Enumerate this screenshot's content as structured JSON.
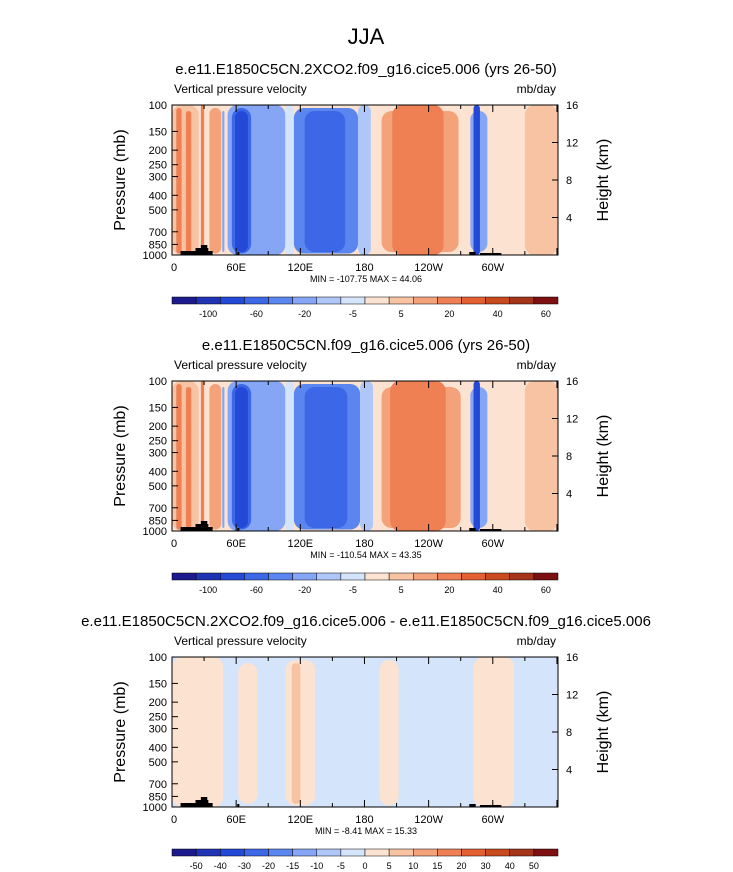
{
  "figure_title": "JJA",
  "chart_data": [
    {
      "type": "heatmap",
      "title": "e.e11.E1850C5CN.2XCO2.f09_g16.cice5.006 (yrs 26-50)",
      "variable": "Vertical pressure velocity",
      "units": "mb/day",
      "ylabel": "Pressure (mb)",
      "ylabel_right": "Height (km)",
      "xticks": [
        "0",
        "60E",
        "120E",
        "180",
        "120W",
        "60W"
      ],
      "yticks": [
        "100",
        "150",
        "200",
        "250",
        "300",
        "400",
        "500",
        "700",
        "850",
        "1000"
      ],
      "yticks_right": [
        "16",
        "12",
        "8",
        "4"
      ],
      "stats": "MIN = -107.75   MAX =  44.06",
      "colorbar_labels": [
        "-100",
        "-60",
        "-20",
        "-5",
        "5",
        "20",
        "40",
        "60"
      ],
      "colorbar_colors": [
        "#1c1b8e",
        "#1f33b4",
        "#2349d6",
        "#3c68e8",
        "#5c86ef",
        "#84a6f4",
        "#aec6f8",
        "#d4e4fb",
        "#fce2d0",
        "#f8c3a3",
        "#f4a27a",
        "#ee8054",
        "#e46032",
        "#c94a1e",
        "#a4341a",
        "#7c1010"
      ],
      "regions": [
        {
          "x": 0,
          "w": 25,
          "fill": "#f8c3a3"
        },
        {
          "x": 4,
          "w": 5,
          "fill": "#ee8054"
        },
        {
          "x": 13,
          "w": 5,
          "fill": "#ee8054"
        },
        {
          "x": 27,
          "w": 3,
          "fill": "#ee8054"
        },
        {
          "x": 35,
          "w": 11,
          "fill": "#f4a27a"
        },
        {
          "x": 47,
          "w": 2,
          "fill": "#84a6f4"
        },
        {
          "x": 52,
          "w": 54,
          "fill": "#84a6f4"
        },
        {
          "x": 56,
          "w": 18,
          "fill": "#3c68e8"
        },
        {
          "x": 59,
          "w": 12,
          "fill": "#2349d6"
        },
        {
          "x": 106,
          "w": 8,
          "fill": "#d4e4fb"
        },
        {
          "x": 114,
          "w": 60,
          "fill": "#5c86ef"
        },
        {
          "x": 124,
          "w": 38,
          "fill": "#3c68e8"
        },
        {
          "x": 174,
          "w": 12,
          "fill": "#aec6f8"
        },
        {
          "x": 186,
          "w": 88,
          "fill": "#fce2d0"
        },
        {
          "x": 196,
          "w": 72,
          "fill": "#f4a27a"
        },
        {
          "x": 206,
          "w": 48,
          "fill": "#ee8054"
        },
        {
          "x": 274,
          "w": 5,
          "fill": "#fce2d0"
        },
        {
          "x": 279,
          "w": 16,
          "fill": "#84a6f4"
        },
        {
          "x": 282,
          "w": 6,
          "fill": "#2349d6"
        },
        {
          "x": 295,
          "w": 22,
          "fill": "#fce2d0"
        },
        {
          "x": 317,
          "w": 44,
          "fill": "#fce2d0"
        },
        {
          "x": 330,
          "w": 31,
          "fill": "#f8c3a3"
        }
      ]
    },
    {
      "type": "heatmap",
      "title": "e.e11.E1850C5CN.f09_g16.cice5.006 (yrs 26-50)",
      "variable": "Vertical pressure velocity",
      "units": "mb/day",
      "ylabel": "Pressure (mb)",
      "ylabel_right": "Height (km)",
      "xticks": [
        "0",
        "60E",
        "120E",
        "180",
        "120W",
        "60W"
      ],
      "yticks": [
        "100",
        "150",
        "200",
        "250",
        "300",
        "400",
        "500",
        "700",
        "850",
        "1000"
      ],
      "yticks_right": [
        "16",
        "12",
        "8",
        "4"
      ],
      "stats": "MIN = -110.54   MAX =  43.35",
      "colorbar_labels": [
        "-100",
        "-60",
        "-20",
        "-5",
        "5",
        "20",
        "40",
        "60"
      ],
      "colorbar_colors": [
        "#1c1b8e",
        "#1f33b4",
        "#2349d6",
        "#3c68e8",
        "#5c86ef",
        "#84a6f4",
        "#aec6f8",
        "#d4e4fb",
        "#fce2d0",
        "#f8c3a3",
        "#f4a27a",
        "#ee8054",
        "#e46032",
        "#c94a1e",
        "#a4341a",
        "#7c1010"
      ],
      "regions": [
        {
          "x": 0,
          "w": 25,
          "fill": "#f8c3a3"
        },
        {
          "x": 4,
          "w": 5,
          "fill": "#ee8054"
        },
        {
          "x": 13,
          "w": 5,
          "fill": "#ee8054"
        },
        {
          "x": 27,
          "w": 3,
          "fill": "#ee8054"
        },
        {
          "x": 35,
          "w": 11,
          "fill": "#f4a27a"
        },
        {
          "x": 47,
          "w": 2,
          "fill": "#84a6f4"
        },
        {
          "x": 52,
          "w": 54,
          "fill": "#84a6f4"
        },
        {
          "x": 56,
          "w": 18,
          "fill": "#3c68e8"
        },
        {
          "x": 59,
          "w": 12,
          "fill": "#2349d6"
        },
        {
          "x": 106,
          "w": 8,
          "fill": "#d4e4fb"
        },
        {
          "x": 114,
          "w": 62,
          "fill": "#5c86ef"
        },
        {
          "x": 124,
          "w": 40,
          "fill": "#3c68e8"
        },
        {
          "x": 176,
          "w": 12,
          "fill": "#aec6f8"
        },
        {
          "x": 188,
          "w": 86,
          "fill": "#fce2d0"
        },
        {
          "x": 196,
          "w": 74,
          "fill": "#f4a27a"
        },
        {
          "x": 204,
          "w": 52,
          "fill": "#ee8054"
        },
        {
          "x": 274,
          "w": 5,
          "fill": "#fce2d0"
        },
        {
          "x": 279,
          "w": 16,
          "fill": "#84a6f4"
        },
        {
          "x": 282,
          "w": 6,
          "fill": "#2349d6"
        },
        {
          "x": 295,
          "w": 22,
          "fill": "#fce2d0"
        },
        {
          "x": 317,
          "w": 44,
          "fill": "#fce2d0"
        },
        {
          "x": 330,
          "w": 31,
          "fill": "#f8c3a3"
        }
      ]
    },
    {
      "type": "heatmap",
      "title": "e.e11.E1850C5CN.2XCO2.f09_g16.cice5.006 - e.e11.E1850C5CN.f09_g16.cice5.006",
      "variable": "Vertical pressure velocity",
      "units": "mb/day",
      "ylabel": "Pressure (mb)",
      "ylabel_right": "Height (km)",
      "xticks": [
        "0",
        "60E",
        "120E",
        "180",
        "120W",
        "60W"
      ],
      "yticks": [
        "100",
        "150",
        "200",
        "250",
        "300",
        "400",
        "500",
        "700",
        "850",
        "1000"
      ],
      "yticks_right": [
        "16",
        "12",
        "8",
        "4"
      ],
      "stats": "MIN =  -8.41   MAX =  15.33",
      "colorbar_labels": [
        "-50",
        "-40",
        "-30",
        "-20",
        "-15",
        "-10",
        "-5",
        "0",
        "5",
        "10",
        "15",
        "20",
        "30",
        "40",
        "50"
      ],
      "colorbar_colors": [
        "#1c1b8e",
        "#1f33b4",
        "#2349d6",
        "#3c68e8",
        "#5c86ef",
        "#84a6f4",
        "#aec6f8",
        "#d4e4fb",
        "#fce2d0",
        "#f8c3a3",
        "#f4a27a",
        "#ee8054",
        "#e46032",
        "#c94a1e",
        "#a4341a",
        "#7c1010"
      ],
      "regions": [
        {
          "x": 0,
          "w": 48,
          "fill": "#fce2d0"
        },
        {
          "x": 48,
          "w": 14,
          "fill": "#d4e4fb"
        },
        {
          "x": 62,
          "w": 18,
          "fill": "#fce2d0"
        },
        {
          "x": 80,
          "w": 26,
          "fill": "#d4e4fb"
        },
        {
          "x": 106,
          "w": 28,
          "fill": "#fce2d0"
        },
        {
          "x": 112,
          "w": 8,
          "fill": "#f8c3a3"
        },
        {
          "x": 134,
          "w": 60,
          "fill": "#d4e4fb"
        },
        {
          "x": 194,
          "w": 18,
          "fill": "#fce2d0"
        },
        {
          "x": 212,
          "w": 70,
          "fill": "#d4e4fb"
        },
        {
          "x": 282,
          "w": 38,
          "fill": "#fce2d0"
        },
        {
          "x": 320,
          "w": 41,
          "fill": "#d4e4fb"
        }
      ]
    }
  ]
}
